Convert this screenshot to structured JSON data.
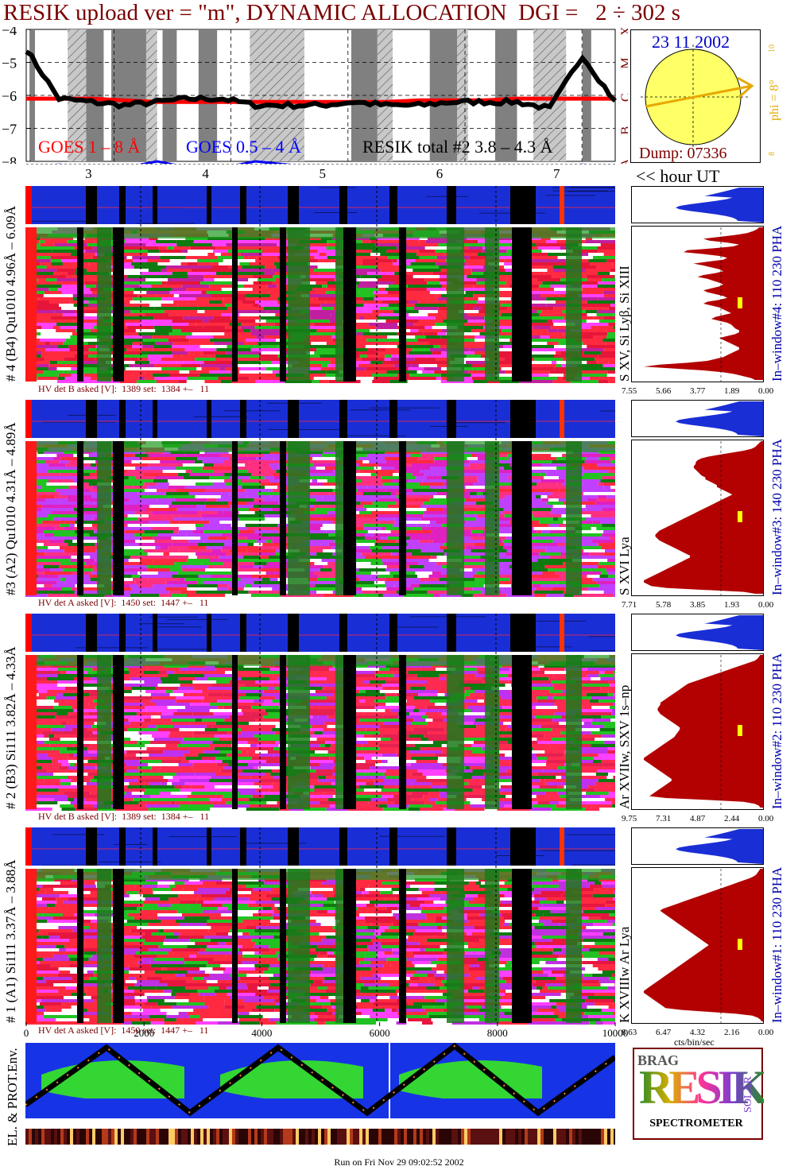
{
  "header": {
    "title": "RESIK upload ver = \"m\", DYNAMIC ALLOCATION  DGI =   2 ÷ 302 s"
  },
  "goes_panel": {
    "y_ticks": [
      "−4",
      "−5",
      "−6",
      "−7",
      "−8"
    ],
    "class_letters": [
      "A",
      "B",
      "C",
      "M",
      "X"
    ],
    "legend_goes_long": "GOES 1 – 8 Å",
    "legend_goes_short": "GOES 0.5 – 4 Å",
    "legend_resik": "RESIK total #2  3.8 – 4.3 Å",
    "colors": {
      "goes_long": "#ff0000",
      "goes_short": "#0000ff",
      "resik": "#000000",
      "eclipse": "#808080"
    }
  },
  "sun_panel": {
    "date": "23 11 2002",
    "dump": "Dump: 07336",
    "phi": "phi =  8°",
    "scale_top": "10",
    "scale_bottom": "8",
    "colors": {
      "disk": "#ffff66",
      "arrow": "#e6a800"
    }
  },
  "hour_axis": {
    "ticks": [
      "3",
      "4",
      "5",
      "6",
      "7"
    ],
    "label": "<< hour UT"
  },
  "detectors": [
    {
      "id": "det4",
      "left_label": "# 4 (B4) Qu1010 4.96Å – 6.09Å",
      "line_label": "S XV, Si Lyβ, Si XIII",
      "right_label": "In–window#4:  110 230 PHA",
      "hv_text": "HV det B asked [V]:  1389 set:  1384 +–   11",
      "x_ticks": [
        "7.55",
        "5.66",
        "3.77",
        "1.89",
        "0.00"
      ],
      "spectrum": [
        2,
        3,
        5,
        8,
        14,
        22,
        30,
        27,
        18,
        12,
        15,
        25,
        38,
        40,
        30,
        22,
        18,
        20,
        28,
        35,
        30,
        26,
        22,
        20,
        24,
        30,
        33,
        28,
        25,
        22,
        20,
        22,
        26,
        30,
        28,
        24,
        20,
        18,
        22,
        28,
        30,
        26,
        22,
        20,
        18,
        16,
        20,
        24,
        26,
        22,
        18,
        16,
        15,
        14,
        12,
        12,
        14,
        18,
        22,
        20,
        18,
        16,
        14,
        12,
        12,
        14,
        16,
        18,
        20,
        24,
        28,
        38,
        52,
        60,
        45,
        30,
        20,
        14,
        10,
        6,
        4
      ]
    },
    {
      "id": "det3",
      "left_label": "#3 (A2) Qu1010  4.31Å – 4.89Å",
      "line_label": "S XVI Lya",
      "right_label": "In–window#3:  140 230 PHA",
      "hv_text": "HV det A asked [V]:  1450 set:  1447 +–   11",
      "x_ticks": [
        "7.71",
        "5.78",
        "3.85",
        "1.93",
        "0.00"
      ],
      "spectrum": [
        1,
        2,
        3,
        4,
        6,
        10,
        16,
        22,
        28,
        32,
        34,
        35,
        35,
        36,
        36,
        35,
        34,
        33,
        32,
        30,
        30,
        28,
        26,
        24,
        24,
        22,
        20,
        18,
        16,
        18,
        20,
        22,
        24,
        26,
        28,
        30,
        32,
        34,
        36,
        38,
        40,
        42,
        44,
        46,
        48,
        50,
        52,
        54,
        55,
        56,
        56,
        55,
        54,
        52,
        50,
        48,
        46,
        44,
        42,
        40,
        38,
        38,
        40,
        42,
        44,
        46,
        48,
        50,
        52,
        54,
        56,
        58,
        60,
        62,
        62,
        60,
        58,
        50,
        30,
        10,
        4
      ]
    },
    {
      "id": "det2",
      "left_label": "# 2 (B3) Si111  3.82Å – 4.33Å",
      "line_label": "Ar XVIIw,  SXV 1s–np",
      "right_label": "In–window#2:  110 230 PHA",
      "hv_text": "HV det B asked [V]:  1389 set:  1384 +–   11",
      "x_ticks": [
        "9.75",
        "7.31",
        "4.87",
        "2.44",
        "0.00"
      ],
      "spectrum": [
        2,
        3,
        4,
        6,
        10,
        14,
        18,
        22,
        26,
        30,
        34,
        38,
        42,
        46,
        50,
        54,
        56,
        58,
        60,
        62,
        64,
        66,
        68,
        70,
        72,
        74,
        74,
        75,
        76,
        76,
        75,
        74,
        72,
        70,
        68,
        66,
        64,
        62,
        60,
        60,
        61,
        62,
        63,
        64,
        66,
        68,
        70,
        72,
        74,
        76,
        78,
        80,
        82,
        84,
        86,
        86,
        84,
        82,
        80,
        78,
        76,
        74,
        72,
        70,
        68,
        66,
        66,
        68,
        70,
        72,
        74,
        76,
        78,
        80,
        82,
        70,
        40,
        14,
        6,
        3,
        2
      ]
    },
    {
      "id": "det1",
      "left_label": "# 1 (A1) Si111  3.37Å – 3.88Å",
      "line_label": "K XVIIIw  Ar Lya",
      "right_label": "In–window#1:  110 230 PHA",
      "hv_text": "HV det A asked [V]:  1450 set:  1447 +–   11",
      "x_ticks": [
        "8.63",
        "6.47",
        "4.32",
        "2.16",
        "0.00"
      ],
      "spectrum": [
        2,
        3,
        4,
        5,
        7,
        10,
        14,
        18,
        22,
        26,
        30,
        34,
        38,
        42,
        46,
        50,
        54,
        58,
        62,
        66,
        70,
        74,
        76,
        74,
        72,
        70,
        68,
        66,
        64,
        62,
        60,
        58,
        56,
        54,
        52,
        50,
        48,
        46,
        44,
        42,
        40,
        42,
        44,
        46,
        48,
        50,
        52,
        54,
        56,
        58,
        60,
        62,
        64,
        66,
        68,
        70,
        72,
        74,
        76,
        78,
        80,
        82,
        84,
        86,
        88,
        88,
        86,
        84,
        82,
        80,
        78,
        76,
        74,
        72,
        60,
        40,
        20,
        8,
        4,
        2,
        1
      ]
    }
  ],
  "bin_axis": {
    "ticks": [
      "0",
      "2000",
      "4000",
      "6000",
      "8000",
      "10000"
    ],
    "unit": "cts/bin/sec"
  },
  "env_panel": {
    "label": "EL. & PROT.Env."
  },
  "logo": {
    "big": "RESIK",
    "small_top": "BRAG",
    "small_right": "SOLAR",
    "caption": "SPECTROMETER"
  },
  "footer": "Run on Fri Nov 29 09:02:52 2002",
  "chart_data": {
    "type": "line",
    "title": "RESIK upload ver = \"m\", DYNAMIC ALLOCATION  DGI =   2 ÷ 302 s",
    "xlabel": "<< hour UT",
    "ylabel": "",
    "xlim": [
      2.0,
      7.4
    ],
    "ylim": [
      -8,
      -4
    ],
    "y_log_scale": true,
    "grid": true,
    "x": [
      2.0,
      2.3,
      2.6,
      2.9,
      3.2,
      3.5,
      3.8,
      4.1,
      4.4,
      4.7,
      5.0,
      5.3,
      5.6,
      5.9,
      6.2,
      6.5,
      6.8,
      7.1,
      7.4
    ],
    "series": [
      {
        "name": "GOES 1 – 8 Å",
        "values": [
          -6.1,
          -6.1,
          -6.1,
          -6.15,
          -6.2,
          -6.2,
          -6.2,
          -6.2,
          -6.2,
          -6.2,
          -6.2,
          -6.2,
          -6.15,
          -6.15,
          -6.15,
          -6.1,
          -6.1,
          -6.1,
          -6.1
        ]
      },
      {
        "name": "RESIK total #2  3.8 – 4.3 Å",
        "values": [
          -4.6,
          -6.1,
          -6.2,
          -6.3,
          -6.2,
          -6.1,
          -6.1,
          -6.3,
          -6.3,
          -6.3,
          -6.2,
          -6.3,
          -6.3,
          -6.2,
          -6.2,
          -6.2,
          -6.4,
          -4.8,
          -6.2
        ]
      },
      {
        "name": "GOES 0.5 – 4 Å",
        "values": [
          -8.2,
          -8.1,
          -8.2,
          -8.2,
          -8.0,
          -8.2,
          -8.2,
          -8.0,
          -8.1,
          -8.2,
          -8.2,
          -8.2,
          -8.2,
          -8.2,
          -8.2,
          -8.2,
          -8.2,
          -8.1,
          -8.2
        ]
      }
    ]
  }
}
